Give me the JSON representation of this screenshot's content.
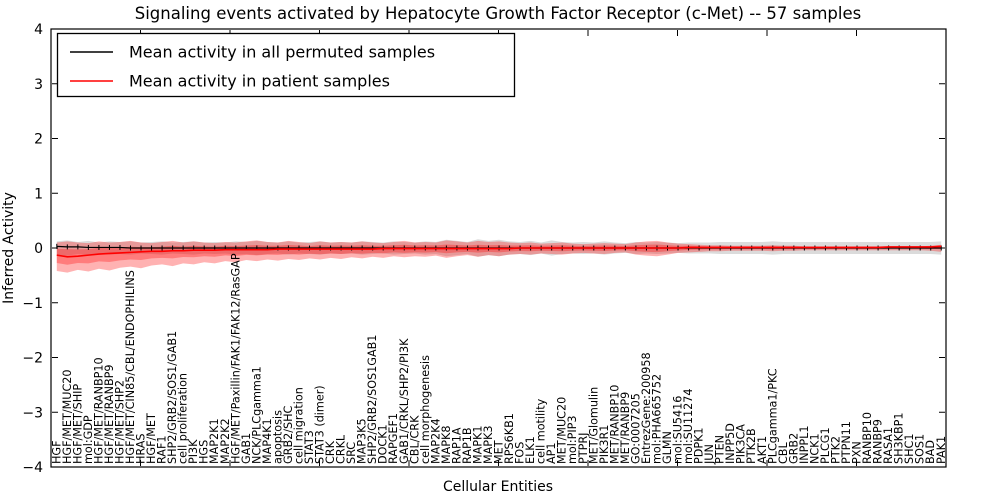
{
  "title": "Signaling events activated by Hepatocyte Growth Factor Receptor (c-Met) -- 57 samples",
  "chart_data": {
    "type": "line",
    "title": "Signaling events activated by Hepatocyte Growth Factor Receptor (c-Met) -- 57 samples",
    "xlabel": "Cellular Entities",
    "ylabel": "Inferred Activity",
    "ylim": [
      -4,
      4
    ],
    "yticks": [
      -4,
      -3,
      -2,
      -1,
      0,
      1,
      2,
      3,
      4
    ],
    "grid": false,
    "legend_position": "upper-left",
    "categories": [
      "HGF",
      "HGF/MET/MUC20",
      "HGF/MET/SHIP",
      "mol:GDP",
      "HGF/MET/RANBP10",
      "HGF/MET/RANBP9",
      "HGF/MET/SHP2",
      "HGF/MET/CIN85/CBL/ENDOPHILINS",
      "HRAS",
      "HGF/MET",
      "RAF1",
      "SHP2/GRB2/SOS1/GAB1",
      "cell proliferation",
      "PI3K",
      "HGS",
      "MAP2K1",
      "MAP2K2",
      "HGF/MET/Paxillin/FAK1/FAK12/RasGAP",
      "GAB1",
      "NCK/PLCgamma1",
      "MAP4K1",
      "apoptosis",
      "GRB2/SHC",
      "cell migration",
      "STAT3",
      "STAT3 (dimer)",
      "CRK",
      "CRKL",
      "SRC",
      "MAP3K5",
      "SHP2/GRB2/SOS1GAB1",
      "DOCK1",
      "RAPGEF1",
      "GAB1/CRKL/SHP2/PI3K",
      "CBL/CRK",
      "cell morphogenesis",
      "MAP2K4",
      "MAPK8",
      "RAP1A",
      "RAP1B",
      "MAPK1",
      "MAPK3",
      "MET",
      "RPS6KB1",
      "FOS",
      "ELK1",
      "cell motility",
      "AP1",
      "MET/MUC20",
      "mol:PIP3",
      "PTPRJ",
      "MET/Glomulin",
      "PIK3R1",
      "MET/RANBP10",
      "MET/RANBP9",
      "GO:0007205",
      "EntrezGene:200958",
      "mol:PHA665752",
      "GLMN",
      "mol:SU5416",
      "mol:SU11274",
      "PDPK1",
      "JUN",
      "PTEN",
      "INPP5D",
      "PIK3CA",
      "PTK2B",
      "AKT1",
      "PLCgamma1/PKC",
      "CBL",
      "GRB2",
      "INPPL1",
      "NCK1",
      "PLCG1",
      "PTK2",
      "PTPN11",
      "PXN",
      "RANBP10",
      "RANBP9",
      "RASA1",
      "SH3KBP1",
      "SHC1",
      "SOS1",
      "BAD",
      "PAK1"
    ],
    "series": [
      {
        "name": "Mean activity in all permuted samples",
        "color": "#000000",
        "marker": "tick",
        "values": [
          0.03,
          0.02,
          0.02,
          0.01,
          0.01,
          0.01,
          0.01,
          0,
          0,
          0,
          0,
          0,
          0,
          0,
          0,
          0,
          0,
          0,
          0,
          0,
          0,
          0,
          0,
          0,
          0,
          0,
          0,
          0,
          0,
          0,
          0,
          0,
          0,
          0,
          0,
          0,
          0,
          0,
          0,
          0,
          0,
          0,
          0,
          0,
          0,
          0,
          0,
          0,
          0,
          0,
          0,
          0,
          0,
          0,
          0,
          0,
          0,
          0,
          0,
          0,
          0,
          0,
          0,
          0,
          0,
          0,
          0,
          0,
          0,
          0,
          0,
          0,
          0,
          0,
          0,
          0,
          0,
          0,
          0,
          0,
          0,
          0,
          0,
          0,
          0
        ]
      },
      {
        "name": "Mean activity in patient samples",
        "color": "#ff0000",
        "marker": "none",
        "values": [
          -0.13,
          -0.16,
          -0.15,
          -0.13,
          -0.11,
          -0.1,
          -0.09,
          -0.08,
          -0.07,
          -0.06,
          -0.06,
          -0.05,
          -0.05,
          -0.04,
          -0.04,
          -0.04,
          -0.03,
          -0.03,
          -0.03,
          -0.03,
          -0.03,
          -0.02,
          -0.02,
          -0.02,
          -0.02,
          -0.02,
          -0.02,
          -0.02,
          -0.02,
          -0.02,
          -0.02,
          -0.01,
          -0.01,
          -0.01,
          -0.01,
          -0.01,
          -0.01,
          -0.01,
          -0.01,
          -0.01,
          -0.01,
          -0.01,
          -0.01,
          -0.01,
          0,
          0,
          0,
          0,
          0,
          0,
          0,
          0,
          0,
          0,
          0,
          0,
          0,
          0,
          0,
          0,
          0.01,
          0.01,
          0.01,
          0.01,
          0.01,
          0.01,
          0.01,
          0.01,
          0.01,
          0.01,
          0.01,
          0.01,
          0.01,
          0.01,
          0.01,
          0.01,
          0.01,
          0.01,
          0.01,
          0.02,
          0.02,
          0.02,
          0.02,
          0.02,
          0.03
        ]
      }
    ],
    "bands": [
      {
        "name": "std band of permuted samples",
        "color": "#999999",
        "opacity": 0.35,
        "hi": [
          0.12,
          0.14,
          0.11,
          0.13,
          0.1,
          0.12,
          0.11,
          0.12,
          0.1,
          0.11,
          0.12,
          0.1,
          0.11,
          0.12,
          0.1,
          0.11,
          0.1,
          0.12,
          0.11,
          0.13,
          0.11,
          0.1,
          0.12,
          0.1,
          0.11,
          0.12,
          0.1,
          0.11,
          0.1,
          0.12,
          0.11,
          0.1,
          0.12,
          0.11,
          0.1,
          0.12,
          0.11,
          0.15,
          0.13,
          0.11,
          0.16,
          0.13,
          0.15,
          0.12,
          0.11,
          0.13,
          0.1,
          0.14,
          0.11,
          0.1,
          0.11,
          0.1,
          0.12,
          0.1,
          0.09,
          0.11,
          0.1,
          0.11,
          0.1,
          0.09,
          0.1,
          0.1,
          0.1,
          0.11,
          0.11,
          0.11,
          0.11,
          0.11,
          0.12,
          0.11,
          0.11,
          0.11,
          0.11,
          0.11,
          0.11,
          0.11,
          0.11,
          0.11,
          0.11,
          0.11,
          0.11,
          0.11,
          0.11,
          0.11,
          0.12
        ],
        "lo": [
          -0.12,
          -0.14,
          -0.11,
          -0.13,
          -0.1,
          -0.12,
          -0.11,
          -0.12,
          -0.1,
          -0.11,
          -0.12,
          -0.1,
          -0.11,
          -0.12,
          -0.1,
          -0.11,
          -0.1,
          -0.12,
          -0.11,
          -0.13,
          -0.11,
          -0.1,
          -0.12,
          -0.1,
          -0.11,
          -0.12,
          -0.1,
          -0.11,
          -0.1,
          -0.12,
          -0.11,
          -0.1,
          -0.12,
          -0.11,
          -0.1,
          -0.12,
          -0.11,
          -0.15,
          -0.13,
          -0.11,
          -0.16,
          -0.13,
          -0.15,
          -0.12,
          -0.11,
          -0.13,
          -0.1,
          -0.14,
          -0.11,
          -0.1,
          -0.11,
          -0.1,
          -0.12,
          -0.1,
          -0.09,
          -0.11,
          -0.1,
          -0.11,
          -0.1,
          -0.09,
          -0.1,
          -0.1,
          -0.1,
          -0.11,
          -0.11,
          -0.11,
          -0.11,
          -0.11,
          -0.12,
          -0.11,
          -0.11,
          -0.11,
          -0.11,
          -0.11,
          -0.11,
          -0.11,
          -0.11,
          -0.11,
          -0.11,
          -0.11,
          -0.11,
          -0.11,
          -0.11,
          -0.11,
          -0.12
        ]
      },
      {
        "name": "std band of patient samples",
        "color": "#ff0000",
        "opacity": 0.3,
        "mean_ref": 1,
        "inner_scale": 0.5,
        "hi": [
          0.1,
          0.12,
          0.1,
          0.09,
          0.12,
          0.1,
          0.11,
          0.13,
          0.1,
          0.09,
          0.11,
          0.13,
          0.1,
          0.12,
          0.1,
          0.09,
          0.11,
          0.1,
          0.12,
          0.14,
          0.11,
          0.1,
          0.13,
          0.11,
          0.09,
          0.12,
          0.1,
          0.11,
          0.1,
          0.12,
          0.1,
          0.09,
          0.11,
          0.13,
          0.1,
          0.11,
          0.1,
          0.14,
          0.12,
          0.1,
          0.13,
          0.11,
          0.12,
          0.1,
          0.09,
          0.1,
          0.08,
          0.09,
          0.1,
          0.08,
          0.07,
          0.08,
          0.09,
          0.08,
          0.07,
          0.1,
          0.12,
          0.13,
          0.1,
          0.08,
          0.07,
          0.06,
          0.05,
          0.05,
          0.04,
          0.04,
          0.04,
          0.04,
          0.05,
          0.04,
          0.04,
          0.03,
          0.03,
          0.03,
          0.03,
          0.03,
          0.03,
          0.03,
          0.03,
          0.03,
          0.03,
          0.03,
          0.03,
          0.04,
          0.06
        ],
        "lo": [
          -0.42,
          -0.45,
          -0.4,
          -0.43,
          -0.38,
          -0.41,
          -0.36,
          -0.34,
          -0.37,
          -0.32,
          -0.3,
          -0.33,
          -0.28,
          -0.3,
          -0.26,
          -0.28,
          -0.24,
          -0.26,
          -0.22,
          -0.24,
          -0.21,
          -0.23,
          -0.2,
          -0.22,
          -0.19,
          -0.21,
          -0.18,
          -0.2,
          -0.17,
          -0.19,
          -0.16,
          -0.18,
          -0.15,
          -0.17,
          -0.15,
          -0.16,
          -0.14,
          -0.18,
          -0.15,
          -0.13,
          -0.16,
          -0.13,
          -0.15,
          -0.12,
          -0.11,
          -0.12,
          -0.1,
          -0.11,
          -0.12,
          -0.1,
          -0.09,
          -0.1,
          -0.11,
          -0.09,
          -0.08,
          -0.12,
          -0.14,
          -0.15,
          -0.12,
          -0.09,
          -0.08,
          -0.07,
          -0.06,
          -0.06,
          -0.05,
          -0.05,
          -0.05,
          -0.05,
          -0.06,
          -0.05,
          -0.05,
          -0.04,
          -0.04,
          -0.04,
          -0.04,
          -0.04,
          -0.04,
          -0.04,
          -0.04,
          -0.04,
          -0.04,
          -0.04,
          -0.04,
          -0.05,
          -0.07
        ]
      }
    ]
  }
}
